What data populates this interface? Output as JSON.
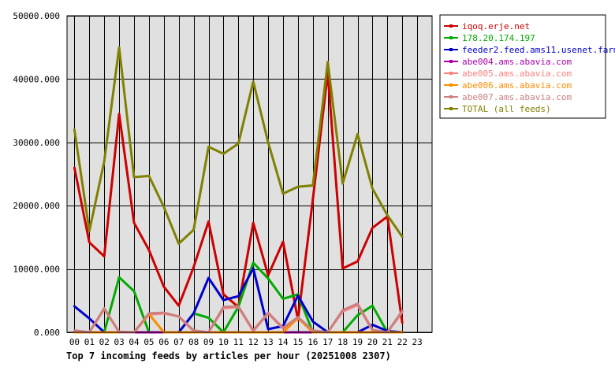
{
  "chart_data": {
    "type": "line",
    "title": "Top 7 incoming feeds by articles per hour (20251008 2307)",
    "xlabel": "",
    "ylabel": "",
    "x": [
      "00",
      "01",
      "02",
      "03",
      "04",
      "05",
      "06",
      "07",
      "08",
      "09",
      "10",
      "11",
      "12",
      "13",
      "14",
      "15",
      "16",
      "17",
      "18",
      "19",
      "20",
      "21",
      "22",
      "23"
    ],
    "ylim": [
      0,
      50000
    ],
    "yticks": [
      0,
      10000,
      20000,
      30000,
      40000,
      50000
    ],
    "ytick_labels": [
      "0.000",
      "10000.000",
      "20000.000",
      "30000.000",
      "40000.000",
      "50000.000"
    ],
    "grid": true,
    "legend_position": "right",
    "colors": {
      "plot_background": "#e0e0e0",
      "grid": "#000000"
    },
    "series": [
      {
        "name": "iqoq.erje.net",
        "color": "#cc0000",
        "values": [
          26000,
          14200,
          12000,
          34500,
          17300,
          13000,
          7200,
          4200,
          10300,
          17500,
          6000,
          4000,
          17300,
          9000,
          14300,
          2000,
          21000,
          41000,
          10100,
          11200,
          16500,
          18300,
          1500,
          null
        ]
      },
      {
        "name": "178.20.174.197",
        "color": "#00aa00",
        "values": [
          0,
          0,
          0,
          8700,
          6500,
          0,
          0,
          0,
          3000,
          2300,
          0,
          4000,
          11000,
          8500,
          5300,
          6000,
          0,
          0,
          0,
          2700,
          4200,
          0,
          0,
          null
        ]
      },
      {
        "name": "feeder2.feed.ams11.usenet.farm",
        "color": "#0000cc",
        "values": [
          4100,
          2200,
          0,
          0,
          0,
          0,
          0,
          0,
          3000,
          8600,
          5100,
          5700,
          10100,
          500,
          1000,
          5800,
          1700,
          0,
          0,
          0,
          1200,
          200,
          0,
          null
        ]
      },
      {
        "name": "abe004.ams.abavia.com",
        "color": "#aa00aa",
        "values": [
          0,
          0,
          0,
          0,
          0,
          0,
          0,
          0,
          0,
          0,
          0,
          0,
          0,
          0,
          0,
          0,
          0,
          0,
          0,
          0,
          0,
          0,
          0,
          null
        ]
      },
      {
        "name": "abe005.ams.abavia.com",
        "color": "#ff7f7f",
        "values": [
          200,
          0,
          3700,
          100,
          0,
          2800,
          3000,
          2500,
          200,
          0,
          3800,
          4000,
          200,
          3000,
          600,
          2200,
          200,
          0,
          3300,
          4300,
          300,
          0,
          3200,
          null
        ]
      },
      {
        "name": "abe006.ams.abavia.com",
        "color": "#ff8c00",
        "values": [
          0,
          0,
          0,
          0,
          0,
          2900,
          0,
          0,
          0,
          0,
          0,
          0,
          0,
          0,
          0,
          2300,
          0,
          0,
          0,
          0,
          0,
          0,
          0,
          null
        ]
      },
      {
        "name": "abe007.ams.abavia.com",
        "color": "#cc7f7f",
        "values": [
          300,
          0,
          3800,
          0,
          0,
          3000,
          3100,
          2500,
          300,
          0,
          4000,
          4100,
          300,
          3100,
          700,
          2400,
          300,
          0,
          3500,
          4500,
          400,
          0,
          3400,
          null
        ]
      },
      {
        "name": "TOTAL (all feeds)",
        "color": "#808000",
        "values": [
          32000,
          16000,
          27000,
          45000,
          24500,
          24700,
          19800,
          14000,
          16200,
          29300,
          28200,
          29800,
          39600,
          30000,
          21900,
          23000,
          23200,
          42700,
          23500,
          31300,
          22700,
          18500,
          15100,
          null
        ]
      }
    ]
  }
}
